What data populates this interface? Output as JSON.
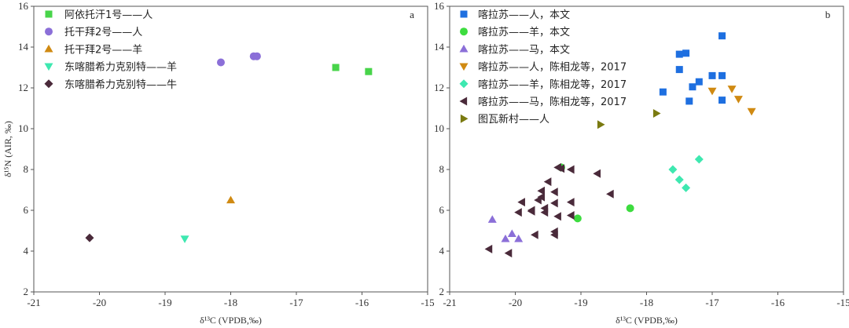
{
  "chart_data": [
    {
      "type": "scatter",
      "panel_label": "a",
      "xlabel": "δ¹³C (VPDB,‰)",
      "ylabel": "δ¹⁵N (AIR, ‰)",
      "xlim": [
        -21,
        -15
      ],
      "ylim": [
        2,
        16
      ],
      "xticks": [
        -21,
        -20,
        -19,
        -18,
        -17,
        -16,
        -15
      ],
      "yticks": [
        2,
        4,
        6,
        8,
        10,
        12,
        14,
        16
      ],
      "legend_position": "top-left",
      "grid": false,
      "series": [
        {
          "name": "阿依托汗1号——人",
          "marker": "square",
          "color": "#48d44a",
          "points": [
            [
              -16.4,
              13.0
            ],
            [
              -15.9,
              12.8
            ]
          ]
        },
        {
          "name": "托干拜2号——人",
          "marker": "circle",
          "color": "#8b6fd8",
          "points": [
            [
              -18.15,
              13.25
            ],
            [
              -17.65,
              13.55
            ],
            [
              -17.6,
              13.55
            ]
          ]
        },
        {
          "name": "托干拜2号——羊",
          "marker": "triangle-up",
          "color": "#d08a12",
          "points": [
            [
              -18.0,
              6.5
            ]
          ]
        },
        {
          "name": "东喀腊希力克别特——羊",
          "marker": "triangle-down",
          "color": "#3ee8b0",
          "points": [
            [
              -18.7,
              4.6
            ]
          ]
        },
        {
          "name": "东喀腊希力克别特——牛",
          "marker": "diamond",
          "color": "#4a2a3a",
          "points": [
            [
              -20.15,
              4.65
            ]
          ]
        }
      ]
    },
    {
      "type": "scatter",
      "panel_label": "b",
      "xlabel": "δ¹³C (VPDB,‰)",
      "ylabel": "",
      "xlim": [
        -21,
        -15
      ],
      "ylim": [
        2,
        16
      ],
      "xticks": [
        -21,
        -20,
        -19,
        -18,
        -17,
        -16,
        -15
      ],
      "yticks": [
        2,
        4,
        6,
        8,
        10,
        12,
        14,
        16
      ],
      "legend_position": "top-left",
      "grid": false,
      "series": [
        {
          "name": "喀拉苏——人，本文",
          "marker": "square",
          "color": "#1e6fe0",
          "points": [
            [
              -17.75,
              11.8
            ],
            [
              -17.5,
              13.65
            ],
            [
              -17.4,
              13.7
            ],
            [
              -17.5,
              12.9
            ],
            [
              -17.2,
              12.3
            ],
            [
              -17.3,
              12.05
            ],
            [
              -17.35,
              11.35
            ],
            [
              -17.0,
              12.6
            ],
            [
              -16.85,
              12.6
            ],
            [
              -16.85,
              11.4
            ],
            [
              -16.85,
              14.55
            ]
          ]
        },
        {
          "name": "喀拉苏——羊，本文",
          "marker": "circle",
          "color": "#3ddc3f",
          "points": [
            [
              -19.3,
              8.1
            ],
            [
              -19.05,
              5.6
            ],
            [
              -18.25,
              6.1
            ]
          ]
        },
        {
          "name": "喀拉苏——马，本文",
          "marker": "triangle-up",
          "color": "#8b6fd8",
          "points": [
            [
              -20.35,
              5.55
            ],
            [
              -20.15,
              4.6
            ],
            [
              -20.05,
              4.85
            ],
            [
              -19.95,
              4.6
            ]
          ]
        },
        {
          "name": "喀拉苏——人，陈相龙等，2017",
          "marker": "triangle-down",
          "color": "#d08a12",
          "points": [
            [
              -17.0,
              11.85
            ],
            [
              -16.7,
              11.95
            ],
            [
              -16.6,
              11.45
            ],
            [
              -16.4,
              10.85
            ]
          ]
        },
        {
          "name": "喀拉苏——羊，陈相龙等，2017",
          "marker": "diamond",
          "color": "#3ee8b0",
          "points": [
            [
              -17.6,
              8.0
            ],
            [
              -17.5,
              7.5
            ],
            [
              -17.4,
              7.1
            ],
            [
              -17.2,
              8.5
            ]
          ]
        },
        {
          "name": "喀拉苏——马，陈相龙等，2017",
          "marker": "triangle-left",
          "color": "#4a2a3a",
          "points": [
            [
              -20.4,
              4.1
            ],
            [
              -20.1,
              3.9
            ],
            [
              -19.95,
              5.9
            ],
            [
              -19.9,
              6.4
            ],
            [
              -19.75,
              6.0
            ],
            [
              -19.75,
              5.95
            ],
            [
              -19.7,
              4.8
            ],
            [
              -19.65,
              6.5
            ],
            [
              -19.6,
              6.95
            ],
            [
              -19.6,
              6.65
            ],
            [
              -19.55,
              6.1
            ],
            [
              -19.55,
              5.9
            ],
            [
              -19.5,
              7.4
            ],
            [
              -19.4,
              6.9
            ],
            [
              -19.4,
              6.35
            ],
            [
              -19.35,
              5.7
            ],
            [
              -19.4,
              4.95
            ],
            [
              -19.4,
              4.8
            ],
            [
              -19.35,
              8.1
            ],
            [
              -19.3,
              8.05
            ],
            [
              -19.15,
              8.0
            ],
            [
              -19.15,
              6.4
            ],
            [
              -19.15,
              5.75
            ],
            [
              -18.75,
              7.8
            ],
            [
              -18.55,
              6.8
            ]
          ]
        },
        {
          "name": "图瓦新村——人",
          "marker": "triangle-right",
          "color": "#7a7a10",
          "points": [
            [
              -18.7,
              10.2
            ],
            [
              -17.85,
              10.75
            ]
          ]
        }
      ]
    }
  ]
}
